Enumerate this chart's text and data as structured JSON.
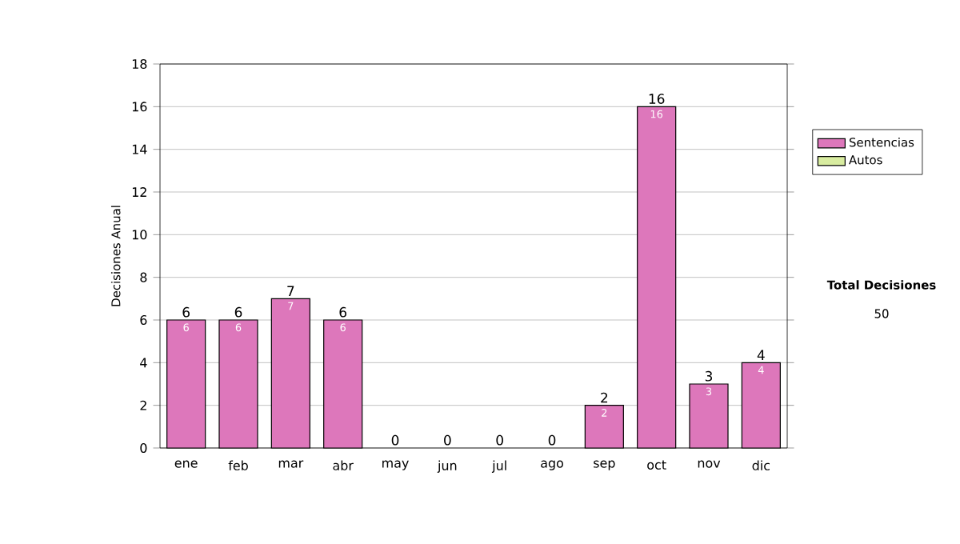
{
  "chart_data": {
    "type": "bar",
    "ylabel": "Decisiones Anual",
    "categories": [
      "ene",
      "feb",
      "mar",
      "abr",
      "may",
      "jun",
      "jul",
      "ago",
      "sep",
      "oct",
      "nov",
      "dic"
    ],
    "series": [
      {
        "name": "Sentencias",
        "color": "#dd77bb",
        "values": [
          6,
          6,
          7,
          6,
          0,
          0,
          0,
          0,
          2,
          16,
          3,
          4
        ],
        "value_labels": [
          "6",
          "6",
          "7",
          "6",
          null,
          null,
          null,
          null,
          "2",
          "16",
          "3",
          "4"
        ]
      },
      {
        "name": "Autos",
        "color": "#d8eca0",
        "values": [
          0,
          0,
          0,
          0,
          0,
          0,
          0,
          0,
          0,
          0,
          0,
          0
        ]
      }
    ],
    "stacked": true,
    "totals": [
      "6",
      "6",
      "7",
      "6",
      "0",
      "0",
      "0",
      "0",
      "2",
      "16",
      "3",
      "4"
    ],
    "ylim": [
      0,
      18
    ],
    "yticks": [
      0,
      2,
      4,
      6,
      8,
      10,
      12,
      14,
      16,
      18
    ],
    "grid": "y",
    "legend": "right",
    "annotations": [
      "Total Decisiones",
      "50"
    ]
  }
}
